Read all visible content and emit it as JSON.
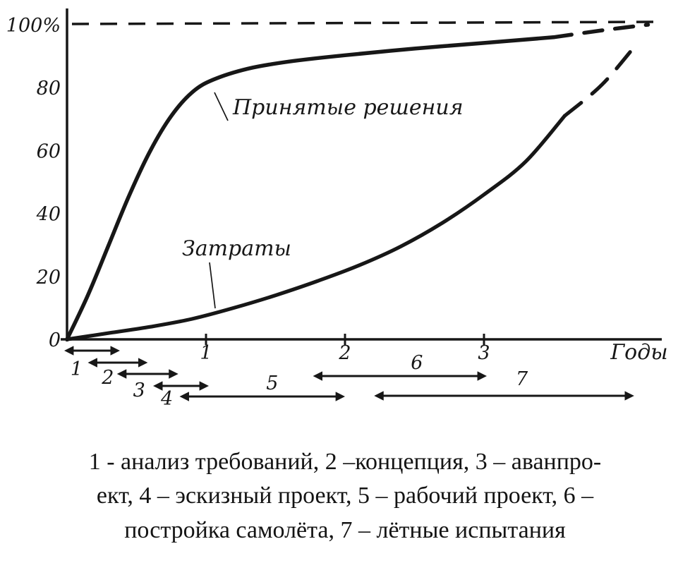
{
  "caption": {
    "line1": "1 - анализ требований, 2 –концепция, 3 – аванпро-",
    "line2": "ект, 4 – эскизный проект, 5 – рабочий проект, 6 –",
    "line3": "постройка самолёта, 7 – лётные испытания"
  },
  "chart_data": {
    "type": "line",
    "title": "",
    "xlabel": "Годы",
    "ylabel": "%",
    "xlim": [
      0,
      4.2
    ],
    "ylim": [
      0,
      100
    ],
    "grid": false,
    "legend_position": "inline-labels",
    "x_axis_title": "Годы",
    "x_ticks": [
      {
        "v": 1,
        "label": "1"
      },
      {
        "v": 2,
        "label": "2"
      },
      {
        "v": 3,
        "label": "3"
      }
    ],
    "y_ticks": [
      {
        "v": 0,
        "label": "0"
      },
      {
        "v": 20,
        "label": "20"
      },
      {
        "v": 40,
        "label": "40"
      },
      {
        "v": 60,
        "label": "60"
      },
      {
        "v": 80,
        "label": "80"
      },
      {
        "v": 100,
        "label": "100%"
      }
    ],
    "reference_line": {
      "y": 100,
      "style": "dashed"
    },
    "series": [
      {
        "name": "Принятые решения",
        "solid": [
          [
            0,
            0
          ],
          [
            0.15,
            14
          ],
          [
            0.3,
            30
          ],
          [
            0.45,
            46
          ],
          [
            0.6,
            60
          ],
          [
            0.75,
            71
          ],
          [
            0.9,
            78.5
          ],
          [
            1.05,
            82.5
          ],
          [
            1.3,
            86
          ],
          [
            1.6,
            88.3
          ],
          [
            2,
            90.3
          ],
          [
            2.5,
            92.4
          ],
          [
            3,
            94.2
          ],
          [
            3.5,
            96
          ]
        ],
        "dashed": [
          [
            3.5,
            96
          ],
          [
            3.85,
            98.2
          ],
          [
            4.18,
            100
          ]
        ]
      },
      {
        "name": "Затраты",
        "solid": [
          [
            0,
            0
          ],
          [
            0.3,
            2
          ],
          [
            0.6,
            4
          ],
          [
            0.9,
            6.5
          ],
          [
            1.2,
            10
          ],
          [
            1.5,
            14
          ],
          [
            1.8,
            18.5
          ],
          [
            2.1,
            23.5
          ],
          [
            2.4,
            29.5
          ],
          [
            2.7,
            37
          ],
          [
            3,
            46
          ],
          [
            3.3,
            56.5
          ],
          [
            3.58,
            71
          ]
        ],
        "dashed": [
          [
            3.58,
            71
          ],
          [
            3.85,
            81
          ],
          [
            4.11,
            94.5
          ]
        ]
      }
    ],
    "phases": [
      {
        "n": "1",
        "label": "анализ требований",
        "start": 0,
        "end": 0.36
      },
      {
        "n": "2",
        "label": "концепция",
        "start": 0.17,
        "end": 0.56
      },
      {
        "n": "3",
        "label": "аванпроект",
        "start": 0.38,
        "end": 0.78
      },
      {
        "n": "4",
        "label": "эскизный проект",
        "start": 0.64,
        "end": 1.0
      },
      {
        "n": "5",
        "label": "рабочий проект",
        "start": 0.83,
        "end": 1.98
      },
      {
        "n": "6",
        "label": "постройка самолёта",
        "start": 1.79,
        "end": 3.0
      },
      {
        "n": "7",
        "label": "лётные испытания",
        "start": 2.23,
        "end": 4.06
      }
    ]
  }
}
